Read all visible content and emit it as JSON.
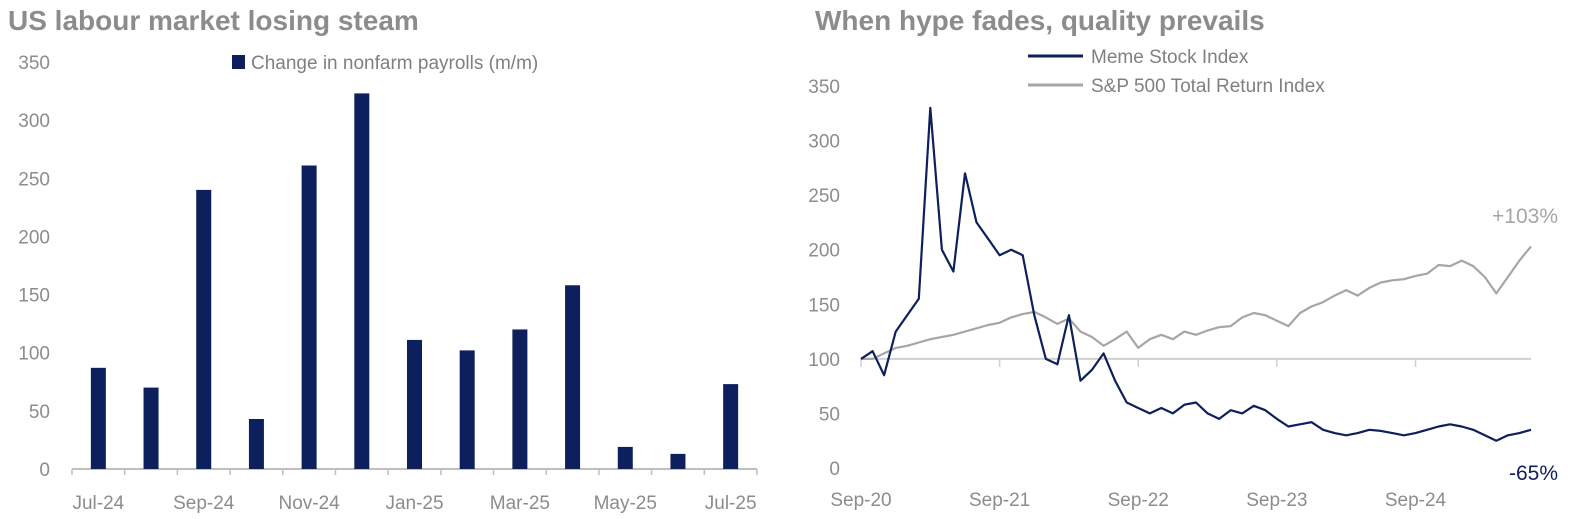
{
  "chart_data": [
    {
      "type": "bar",
      "title": "US labour market losing steam",
      "legend": {
        "label": "Change in nonfarm payrolls (m/m)",
        "placement": "top-center"
      },
      "categories": [
        "Jul-24",
        "Aug-24",
        "Sep-24",
        "Oct-24",
        "Nov-24",
        "Dec-24",
        "Jan-25",
        "Feb-25",
        "Mar-25",
        "Apr-25",
        "May-25",
        "Jun-25",
        "Jul-25"
      ],
      "x_tick_labels": [
        "Jul-24",
        "Sep-24",
        "Nov-24",
        "Jan-25",
        "Mar-25",
        "May-25",
        "Jul-25"
      ],
      "values": [
        87,
        70,
        240,
        43,
        261,
        323,
        111,
        102,
        120,
        158,
        19,
        13,
        73
      ],
      "ylim": [
        0,
        350
      ],
      "y_ticks": [
        0,
        50,
        100,
        150,
        200,
        250,
        300,
        350
      ],
      "grid": false,
      "color": "#0d1f5c"
    },
    {
      "type": "line",
      "title": "When hype fades, quality prevails",
      "legend_placement": "top-center",
      "x_tick_labels": [
        "Sep-20",
        "Sep-21",
        "Sep-22",
        "Sep-23",
        "Sep-24"
      ],
      "x_range": [
        "Sep-20",
        "Jul-25"
      ],
      "ylim": [
        0,
        350
      ],
      "y_ticks": [
        0,
        50,
        100,
        150,
        200,
        250,
        300,
        350
      ],
      "baseline": 100,
      "grid": false,
      "series": [
        {
          "name": "Meme Stock Index",
          "color": "#0d1f5c",
          "end_label": "-65%",
          "points": [
            [
              "Sep-20",
              100
            ],
            [
              "Oct-20",
              107
            ],
            [
              "Nov-20",
              85
            ],
            [
              "Dec-20",
              125
            ],
            [
              "Jan-21",
              140
            ],
            [
              "Feb-21",
              155
            ],
            [
              "Mar-21",
              330
            ],
            [
              "Apr-21",
              200
            ],
            [
              "May-21",
              180
            ],
            [
              "Jun-21",
              270
            ],
            [
              "Jul-21",
              225
            ],
            [
              "Aug-21",
              210
            ],
            [
              "Sep-21",
              195
            ],
            [
              "Oct-21",
              200
            ],
            [
              "Nov-21",
              195
            ],
            [
              "Dec-21",
              140
            ],
            [
              "Jan-22",
              100
            ],
            [
              "Feb-22",
              95
            ],
            [
              "Mar-22",
              140
            ],
            [
              "Apr-22",
              80
            ],
            [
              "May-22",
              90
            ],
            [
              "Jun-22",
              105
            ],
            [
              "Jul-22",
              80
            ],
            [
              "Aug-22",
              60
            ],
            [
              "Sep-22",
              55
            ],
            [
              "Oct-22",
              50
            ],
            [
              "Nov-22",
              55
            ],
            [
              "Dec-22",
              50
            ],
            [
              "Jan-23",
              58
            ],
            [
              "Feb-23",
              60
            ],
            [
              "Mar-23",
              50
            ],
            [
              "Apr-23",
              45
            ],
            [
              "May-23",
              53
            ],
            [
              "Jun-23",
              50
            ],
            [
              "Jul-23",
              57
            ],
            [
              "Aug-23",
              53
            ],
            [
              "Sep-23",
              45
            ],
            [
              "Oct-23",
              38
            ],
            [
              "Nov-23",
              40
            ],
            [
              "Dec-23",
              42
            ],
            [
              "Jan-24",
              35
            ],
            [
              "Feb-24",
              32
            ],
            [
              "Mar-24",
              30
            ],
            [
              "Apr-24",
              32
            ],
            [
              "May-24",
              35
            ],
            [
              "Jun-24",
              34
            ],
            [
              "Jul-24",
              32
            ],
            [
              "Aug-24",
              30
            ],
            [
              "Sep-24",
              32
            ],
            [
              "Oct-24",
              35
            ],
            [
              "Nov-24",
              38
            ],
            [
              "Dec-24",
              40
            ],
            [
              "Jan-25",
              38
            ],
            [
              "Feb-25",
              35
            ],
            [
              "Mar-25",
              30
            ],
            [
              "Apr-25",
              25
            ],
            [
              "May-25",
              30
            ],
            [
              "Jun-25",
              32
            ],
            [
              "Jul-25",
              35
            ]
          ]
        },
        {
          "name": "S&P 500 Total Return Index",
          "color": "#a6a6a6",
          "end_label": "+103%",
          "points": [
            [
              "Sep-20",
              100
            ],
            [
              "Oct-20",
              100
            ],
            [
              "Nov-20",
              105
            ],
            [
              "Dec-20",
              110
            ],
            [
              "Jan-21",
              112
            ],
            [
              "Feb-21",
              115
            ],
            [
              "Mar-21",
              118
            ],
            [
              "Apr-21",
              120
            ],
            [
              "May-21",
              122
            ],
            [
              "Jun-21",
              125
            ],
            [
              "Jul-21",
              128
            ],
            [
              "Aug-21",
              131
            ],
            [
              "Sep-21",
              133
            ],
            [
              "Oct-21",
              138
            ],
            [
              "Nov-21",
              141
            ],
            [
              "Dec-21",
              143
            ],
            [
              "Jan-22",
              138
            ],
            [
              "Feb-22",
              132
            ],
            [
              "Mar-22",
              137
            ],
            [
              "Apr-22",
              125
            ],
            [
              "May-22",
              120
            ],
            [
              "Jun-22",
              112
            ],
            [
              "Jul-22",
              118
            ],
            [
              "Aug-22",
              125
            ],
            [
              "Sep-22",
              110
            ],
            [
              "Oct-22",
              118
            ],
            [
              "Nov-22",
              122
            ],
            [
              "Dec-22",
              118
            ],
            [
              "Jan-23",
              125
            ],
            [
              "Feb-23",
              122
            ],
            [
              "Mar-23",
              126
            ],
            [
              "Apr-23",
              129
            ],
            [
              "May-23",
              130
            ],
            [
              "Jun-23",
              138
            ],
            [
              "Jul-23",
              142
            ],
            [
              "Aug-23",
              140
            ],
            [
              "Sep-23",
              135
            ],
            [
              "Oct-23",
              130
            ],
            [
              "Nov-23",
              142
            ],
            [
              "Dec-23",
              148
            ],
            [
              "Jan-24",
              152
            ],
            [
              "Feb-24",
              158
            ],
            [
              "Mar-24",
              163
            ],
            [
              "Apr-24",
              158
            ],
            [
              "May-24",
              165
            ],
            [
              "Jun-24",
              170
            ],
            [
              "Jul-24",
              172
            ],
            [
              "Aug-24",
              173
            ],
            [
              "Sep-24",
              176
            ],
            [
              "Oct-24",
              178
            ],
            [
              "Nov-24",
              186
            ],
            [
              "Dec-24",
              185
            ],
            [
              "Jan-25",
              190
            ],
            [
              "Feb-25",
              185
            ],
            [
              "Mar-25",
              175
            ],
            [
              "Apr-25",
              160
            ],
            [
              "May-25",
              175
            ],
            [
              "Jun-25",
              190
            ],
            [
              "Jul-25",
              203
            ]
          ]
        }
      ]
    }
  ]
}
